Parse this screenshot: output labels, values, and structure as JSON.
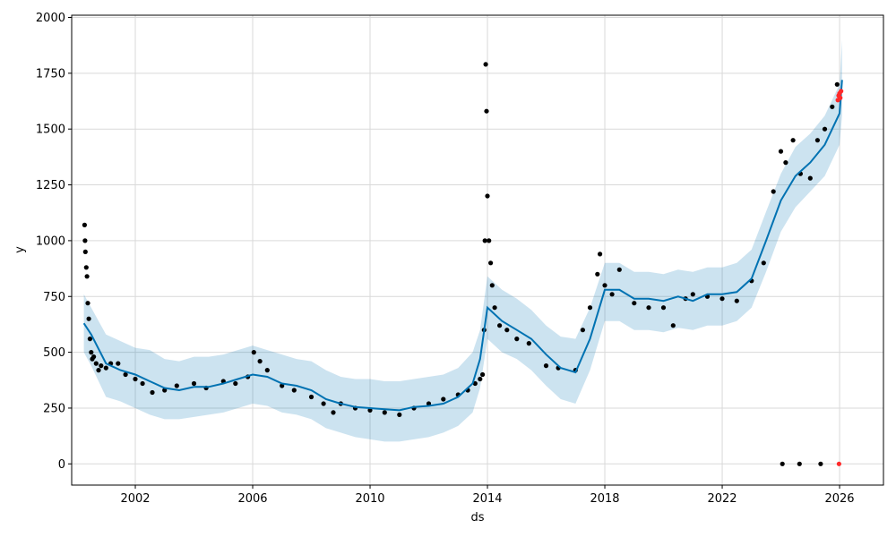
{
  "chart_data": {
    "type": "line",
    "title": "",
    "xlabel": "ds",
    "ylabel": "y",
    "xlim": [
      "1999-11-01",
      "2027-07-01"
    ],
    "ylim": [
      -95,
      2010
    ],
    "grid": true,
    "xticks": [
      {
        "date": "2002-01-01",
        "label": "2002"
      },
      {
        "date": "2006-01-01",
        "label": "2006"
      },
      {
        "date": "2010-01-01",
        "label": "2010"
      },
      {
        "date": "2014-01-01",
        "label": "2014"
      },
      {
        "date": "2018-01-01",
        "label": "2018"
      },
      {
        "date": "2022-01-01",
        "label": "2022"
      },
      {
        "date": "2026-01-01",
        "label": "2026"
      }
    ],
    "yticks": [
      0,
      250,
      500,
      750,
      1000,
      1250,
      1500,
      1750,
      2000
    ],
    "colors": {
      "forecast_line": "#0072B2",
      "uncertainty_band": "#0072B2",
      "observed_points": "#000000",
      "future_points": "#ff2a2a"
    },
    "forecast": {
      "name": "yhat",
      "x": [
        "2000-04-01",
        "2000-07-01",
        "2001-01-01",
        "2001-07-01",
        "2002-01-01",
        "2002-07-01",
        "2003-01-01",
        "2003-07-01",
        "2004-01-01",
        "2004-07-01",
        "2005-01-01",
        "2005-07-01",
        "2006-01-01",
        "2006-07-01",
        "2007-01-01",
        "2007-07-01",
        "2008-01-01",
        "2008-07-01",
        "2009-01-01",
        "2009-07-01",
        "2010-01-01",
        "2010-07-01",
        "2011-01-01",
        "2011-07-01",
        "2012-01-01",
        "2012-07-01",
        "2013-01-01",
        "2013-07-01",
        "2013-10-01",
        "2014-01-01",
        "2014-07-01",
        "2015-01-01",
        "2015-07-01",
        "2016-01-01",
        "2016-07-01",
        "2017-01-01",
        "2017-07-01",
        "2018-01-01",
        "2018-07-01",
        "2019-01-01",
        "2019-07-01",
        "2020-01-01",
        "2020-07-01",
        "2021-01-01",
        "2021-07-01",
        "2022-01-01",
        "2022-07-01",
        "2023-01-01",
        "2023-07-01",
        "2024-01-01",
        "2024-07-01",
        "2025-01-01",
        "2025-07-01",
        "2026-01-01",
        "2026-02-01"
      ],
      "y": [
        630,
        580,
        450,
        420,
        400,
        370,
        340,
        330,
        345,
        345,
        360,
        380,
        400,
        390,
        360,
        350,
        330,
        290,
        270,
        255,
        250,
        245,
        240,
        255,
        260,
        270,
        300,
        360,
        470,
        700,
        640,
        600,
        560,
        490,
        430,
        410,
        560,
        780,
        780,
        740,
        740,
        730,
        750,
        730,
        760,
        760,
        770,
        830,
        1000,
        1180,
        1290,
        1350,
        1430,
        1570,
        1720
      ],
      "upper": [
        760,
        700,
        580,
        550,
        520,
        510,
        470,
        460,
        480,
        480,
        490,
        510,
        530,
        510,
        490,
        470,
        460,
        420,
        390,
        380,
        380,
        370,
        370,
        380,
        390,
        400,
        430,
        500,
        600,
        840,
        780,
        740,
        690,
        620,
        570,
        560,
        700,
        900,
        900,
        860,
        860,
        850,
        870,
        860,
        880,
        880,
        900,
        960,
        1130,
        1300,
        1420,
        1480,
        1560,
        1700,
        1900
      ],
      "lower": [
        500,
        440,
        300,
        280,
        250,
        220,
        200,
        200,
        210,
        220,
        230,
        250,
        270,
        260,
        230,
        220,
        200,
        160,
        140,
        120,
        110,
        100,
        100,
        110,
        120,
        140,
        170,
        230,
        340,
        560,
        500,
        470,
        420,
        350,
        290,
        270,
        420,
        640,
        640,
        600,
        600,
        590,
        610,
        600,
        620,
        620,
        640,
        700,
        860,
        1040,
        1150,
        1220,
        1290,
        1430,
        1560
      ]
    },
    "observed": {
      "name": "y",
      "x": [
        "2000-04-10",
        "2000-04-15",
        "2000-04-20",
        "2000-05-01",
        "2000-05-10",
        "2000-05-20",
        "2000-06-01",
        "2000-06-15",
        "2000-07-01",
        "2000-07-15",
        "2000-08-01",
        "2000-09-01",
        "2000-10-01",
        "2000-11-01",
        "2001-01-01",
        "2001-03-01",
        "2001-06-01",
        "2001-09-01",
        "2002-01-01",
        "2002-04-01",
        "2002-08-01",
        "2003-01-01",
        "2003-06-01",
        "2004-01-01",
        "2004-06-01",
        "2005-01-01",
        "2005-06-01",
        "2005-11-01",
        "2006-01-15",
        "2006-04-01",
        "2006-07-01",
        "2007-01-01",
        "2007-06-01",
        "2008-01-01",
        "2008-06-01",
        "2008-10-01",
        "2009-01-01",
        "2009-07-01",
        "2010-01-01",
        "2010-07-01",
        "2011-01-01",
        "2011-07-01",
        "2012-01-01",
        "2012-07-01",
        "2013-01-01",
        "2013-05-01",
        "2013-08-01",
        "2013-10-01",
        "2013-11-01",
        "2013-11-20",
        "2013-12-01",
        "2013-12-10",
        "2013-12-20",
        "2014-01-01",
        "2014-01-20",
        "2014-02-10",
        "2014-03-01",
        "2014-04-01",
        "2014-06-01",
        "2014-09-01",
        "2015-01-01",
        "2015-06-01",
        "2016-01-01",
        "2016-06-01",
        "2017-01-01",
        "2017-04-01",
        "2017-07-01",
        "2017-10-01",
        "2017-11-01",
        "2018-01-01",
        "2018-04-01",
        "2018-07-01",
        "2019-01-01",
        "2019-07-01",
        "2020-01-01",
        "2020-05-01",
        "2020-10-01",
        "2021-01-01",
        "2021-07-01",
        "2022-01-01",
        "2022-07-01",
        "2023-01-01",
        "2023-06-01",
        "2023-10-01",
        "2024-01-01",
        "2024-03-01",
        "2024-06-01",
        "2024-09-01",
        "2025-01-01",
        "2025-04-01",
        "2025-07-01",
        "2025-10-01",
        "2025-12-01",
        "2024-01-20",
        "2024-08-20",
        "2025-05-10"
      ],
      "y": [
        1070,
        1000,
        950,
        880,
        840,
        720,
        650,
        560,
        500,
        470,
        480,
        450,
        420,
        440,
        430,
        450,
        450,
        400,
        380,
        360,
        320,
        330,
        350,
        360,
        340,
        370,
        360,
        390,
        500,
        460,
        420,
        350,
        330,
        300,
        270,
        230,
        270,
        250,
        240,
        230,
        220,
        250,
        270,
        290,
        310,
        330,
        360,
        380,
        400,
        600,
        1000,
        1790,
        1580,
        1200,
        1000,
        900,
        800,
        700,
        620,
        600,
        560,
        540,
        440,
        430,
        420,
        600,
        700,
        850,
        940,
        800,
        760,
        870,
        720,
        700,
        700,
        620,
        740,
        760,
        750,
        740,
        730,
        820,
        900,
        1220,
        1400,
        1350,
        1450,
        1300,
        1280,
        1450,
        1500,
        1600,
        1700,
        0,
        0,
        0
      ]
    },
    "future": {
      "name": "future",
      "x": [
        "2025-12-10",
        "2025-12-20",
        "2026-01-01",
        "2026-01-10",
        "2026-01-20",
        "2025-12-25"
      ],
      "y": [
        1630,
        1650,
        1660,
        1640,
        1670,
        0
      ]
    }
  }
}
